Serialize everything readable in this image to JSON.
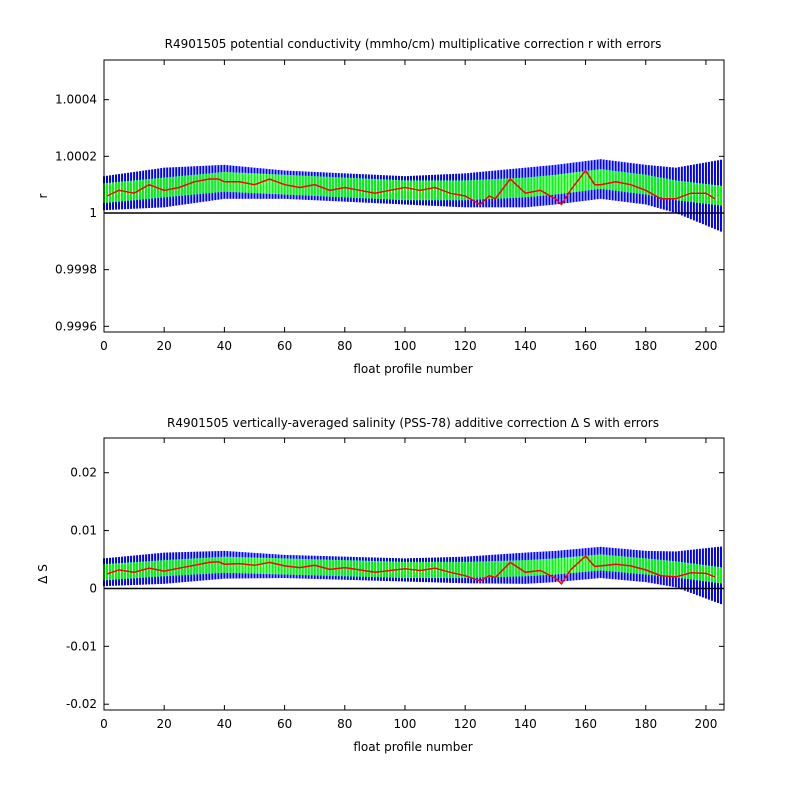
{
  "chart_data": [
    {
      "type": "line",
      "title": "R4901505 potential conductivity (mmho/cm) multiplicative correction r with errors",
      "xlabel": "float profile number",
      "ylabel": "r",
      "xlim": [
        0,
        206
      ],
      "ylim": [
        0.99958,
        1.00054
      ],
      "xticks": [
        0,
        20,
        40,
        60,
        80,
        100,
        120,
        140,
        160,
        180,
        200
      ],
      "yticks": [
        0.9996,
        0.9998,
        1,
        1.0002,
        1.0004
      ],
      "ytick_labels": [
        "0.9996",
        "0.9998",
        "1",
        "1.0002",
        "1.0004"
      ],
      "reference_line": 1,
      "colors": {
        "outer_band": "#0000ff",
        "inner_band": "#00ff00",
        "series": "#ff0000",
        "reference": "#000000"
      },
      "series": [
        {
          "x": [
            1,
            5,
            10,
            15,
            20,
            25,
            30,
            35,
            38,
            40,
            45,
            50,
            55,
            60,
            65,
            70,
            75,
            80,
            85,
            90,
            95,
            100,
            105,
            110,
            115,
            120,
            125,
            128,
            130,
            135,
            140,
            145,
            150,
            152,
            155,
            160,
            163,
            165,
            170,
            175,
            180,
            185,
            190,
            195,
            200,
            203
          ],
          "y": [
            1.00006,
            1.00008,
            1.00007,
            1.0001,
            1.00008,
            1.00009,
            1.00011,
            1.00012,
            1.00012,
            1.00011,
            1.00011,
            1.0001,
            1.00012,
            1.0001,
            1.00009,
            1.0001,
            1.00008,
            1.00009,
            1.00008,
            1.00007,
            1.00008,
            1.00009,
            1.00008,
            1.00009,
            1.00007,
            1.00006,
            1.00003,
            1.00006,
            1.00005,
            1.00012,
            1.00007,
            1.00008,
            1.00005,
            1.00003,
            1.00008,
            1.00015,
            1.0001,
            1.0001,
            1.00011,
            1.0001,
            1.00008,
            1.00005,
            1.00005,
            1.00007,
            1.00007,
            1.00005
          ]
        }
      ],
      "bands": {
        "x": [
          0,
          20,
          40,
          60,
          80,
          100,
          120,
          140,
          150,
          165,
          180,
          190,
          206
        ],
        "center": [
          1.00007,
          1.00009,
          1.00011,
          1.0001,
          1.00009,
          1.00008,
          1.00008,
          1.00009,
          1.0001,
          1.00012,
          1.0001,
          1.00008,
          1.00006
        ],
        "outer_half": [
          6e-05,
          7e-05,
          6e-05,
          5e-05,
          5e-05,
          5e-05,
          6e-05,
          7e-05,
          7e-05,
          7e-05,
          7e-05,
          8e-05,
          0.00013
        ],
        "inner_half": [
          3.5e-05,
          3.5e-05,
          3.5e-05,
          3.5e-05,
          3.5e-05,
          3.5e-05,
          3.5e-05,
          3.5e-05,
          3.5e-05,
          3.5e-05,
          3.5e-05,
          3.5e-05,
          3.5e-05
        ]
      }
    },
    {
      "type": "line",
      "title": "R4901505 vertically-averaged salinity (PSS-78) additive correction Δ S with errors",
      "xlabel": "float profile number",
      "ylabel": "Δ S",
      "xlim": [
        0,
        206
      ],
      "ylim": [
        -0.021,
        0.026
      ],
      "xticks": [
        0,
        20,
        40,
        60,
        80,
        100,
        120,
        140,
        160,
        180,
        200
      ],
      "yticks": [
        -0.02,
        -0.01,
        0,
        0.01,
        0.02
      ],
      "ytick_labels": [
        "-0.02",
        "-0.01",
        "0",
        "0.01",
        "0.02"
      ],
      "reference_line": 0,
      "colors": {
        "outer_band": "#0000ff",
        "inner_band": "#00ff00",
        "series": "#ff0000",
        "reference": "#000000"
      },
      "series": [
        {
          "x": [
            1,
            5,
            10,
            15,
            20,
            25,
            30,
            35,
            38,
            40,
            45,
            50,
            55,
            60,
            65,
            70,
            75,
            80,
            85,
            90,
            95,
            100,
            105,
            110,
            115,
            120,
            125,
            128,
            130,
            135,
            140,
            145,
            150,
            152,
            155,
            160,
            163,
            165,
            170,
            175,
            180,
            185,
            190,
            195,
            200,
            203
          ],
          "y": [
            0.0025,
            0.0032,
            0.0028,
            0.0035,
            0.003,
            0.0035,
            0.004,
            0.0045,
            0.0046,
            0.0042,
            0.0043,
            0.004,
            0.0045,
            0.0039,
            0.0036,
            0.004,
            0.0033,
            0.0036,
            0.0032,
            0.0028,
            0.0031,
            0.0034,
            0.0031,
            0.0035,
            0.0028,
            0.0022,
            0.0013,
            0.0022,
            0.0019,
            0.0045,
            0.0028,
            0.0031,
            0.0018,
            0.0008,
            0.0032,
            0.0056,
            0.0038,
            0.0039,
            0.0042,
            0.0039,
            0.0032,
            0.0022,
            0.002,
            0.0027,
            0.0026,
            0.002
          ]
        }
      ],
      "bands": {
        "x": [
          0,
          20,
          40,
          60,
          80,
          100,
          120,
          140,
          150,
          165,
          180,
          190,
          206
        ],
        "center": [
          0.0028,
          0.0035,
          0.0041,
          0.0038,
          0.0035,
          0.0032,
          0.0032,
          0.0035,
          0.0038,
          0.0045,
          0.0038,
          0.0033,
          0.0022
        ],
        "outer_half": [
          0.0024,
          0.0027,
          0.0024,
          0.002,
          0.002,
          0.002,
          0.0023,
          0.0027,
          0.0027,
          0.0027,
          0.0027,
          0.0031,
          0.0051
        ],
        "inner_half": [
          0.0014,
          0.0014,
          0.0014,
          0.0014,
          0.0014,
          0.0014,
          0.0014,
          0.0014,
          0.0014,
          0.0014,
          0.0014,
          0.0014,
          0.0014
        ]
      }
    }
  ]
}
